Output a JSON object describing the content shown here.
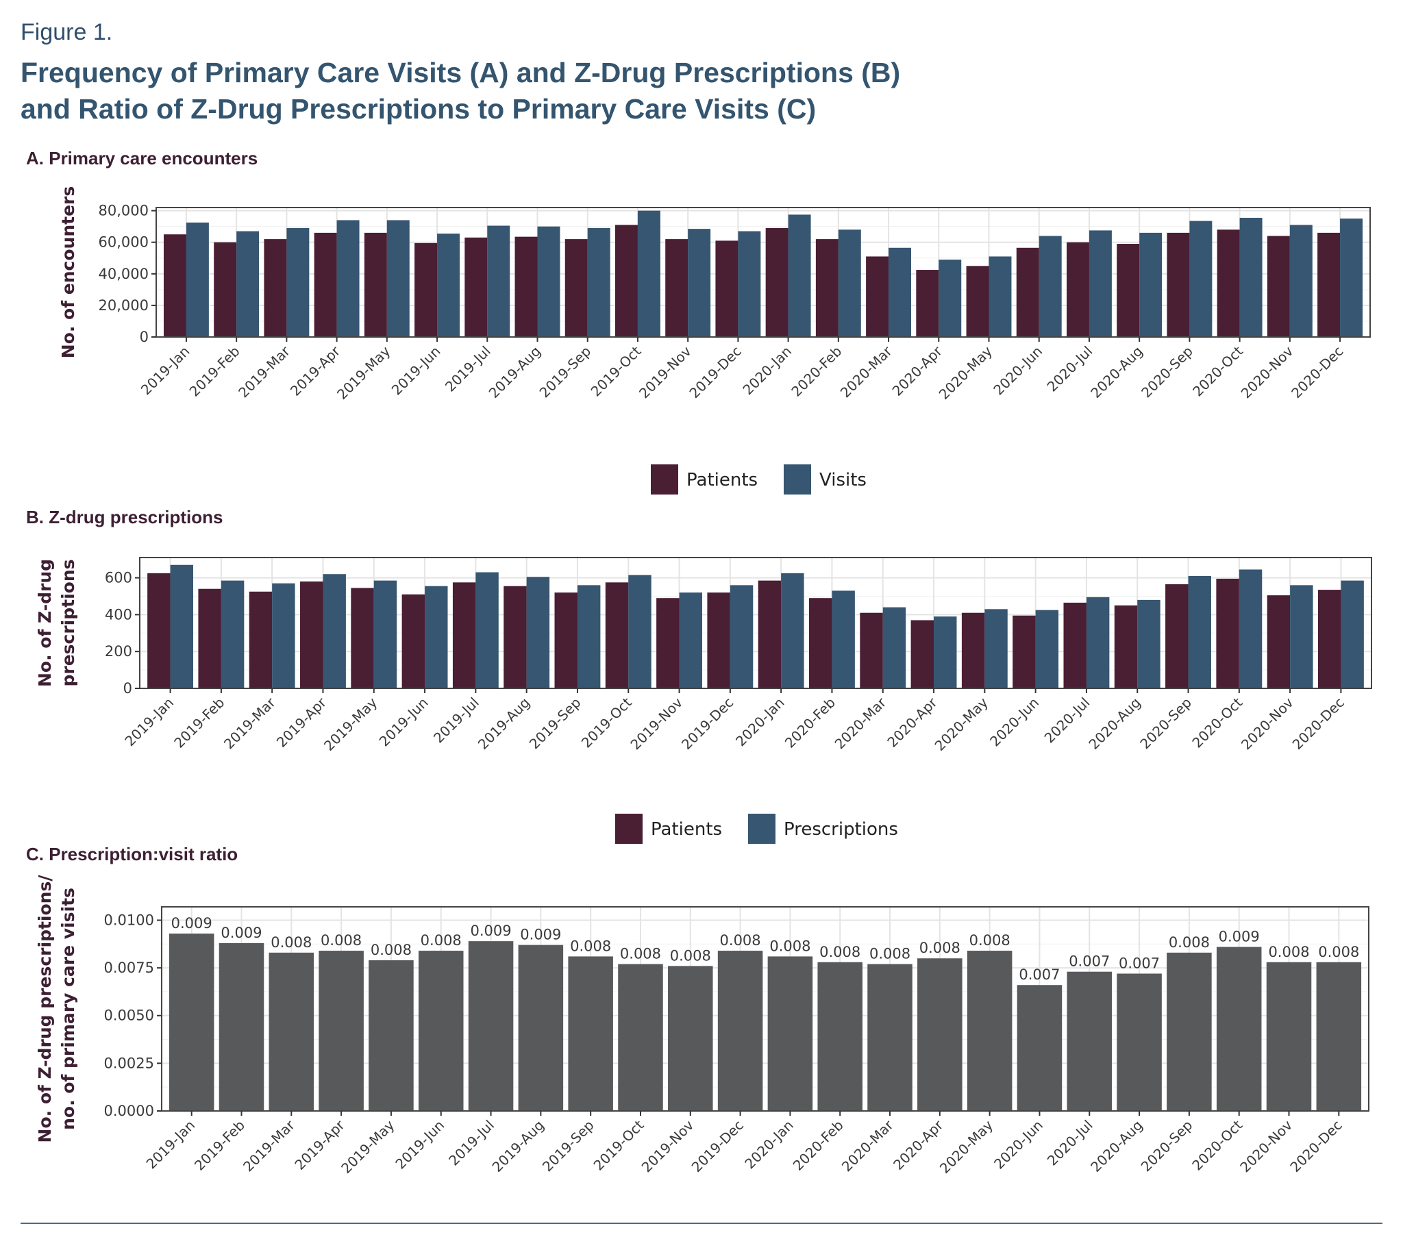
{
  "figure": {
    "label": "Figure 1.",
    "title_line1": "Frequency of Primary Care Visits (A) and Z-Drug Prescriptions (B)",
    "title_line2": "and Ratio of Z-Drug Prescriptions to Primary Care Visits (C)"
  },
  "colors": {
    "patients": "#4a1e33",
    "visits": "#365671",
    "ratio_bar": "#58595b",
    "axis_text": "#3a3a3a",
    "panel_title": "#3d1f33",
    "ylabel": "#3d1f33"
  },
  "chart_data": [
    {
      "type": "bar",
      "panel_title": "A. Primary care encounters",
      "ylabel": "No. of encounters",
      "xlabel": "",
      "ylim": [
        0,
        82000
      ],
      "yticks": [
        0,
        20000,
        40000,
        60000,
        80000
      ],
      "ytick_labels": [
        "0",
        "20,000",
        "40,000",
        "60,000",
        "80,000"
      ],
      "grid": true,
      "legend_position": "bottom",
      "categories": [
        "2019-Jan",
        "2019-Feb",
        "2019-Mar",
        "2019-Apr",
        "2019-May",
        "2019-Jun",
        "2019-Jul",
        "2019-Aug",
        "2019-Sep",
        "2019-Oct",
        "2019-Nov",
        "2019-Dec",
        "2020-Jan",
        "2020-Feb",
        "2020-Mar",
        "2020-Apr",
        "2020-May",
        "2020-Jun",
        "2020-Jul",
        "2020-Aug",
        "2020-Sep",
        "2020-Oct",
        "2020-Nov",
        "2020-Dec"
      ],
      "series": [
        {
          "name": "Patients",
          "values": [
            65000,
            60000,
            62000,
            66000,
            66000,
            59500,
            63000,
            63500,
            62000,
            71000,
            62000,
            61000,
            69000,
            62000,
            51000,
            42500,
            45000,
            56500,
            60000,
            59000,
            66000,
            68000,
            64000,
            66000
          ]
        },
        {
          "name": "Visits",
          "values": [
            72500,
            67000,
            69000,
            74000,
            74000,
            65500,
            70500,
            70000,
            69000,
            80000,
            68500,
            67000,
            77500,
            68000,
            56500,
            49000,
            51000,
            64000,
            67500,
            66000,
            73500,
            75500,
            71000,
            75000
          ]
        }
      ]
    },
    {
      "type": "bar",
      "panel_title": "B. Z-drug prescriptions",
      "ylabel_line1": "No. of Z-drug",
      "ylabel_line2": "prescriptions",
      "xlabel": "",
      "ylim": [
        0,
        710
      ],
      "yticks": [
        0,
        200,
        400,
        600
      ],
      "ytick_labels": [
        "0",
        "200",
        "400",
        "600"
      ],
      "grid": true,
      "legend_position": "bottom",
      "categories": [
        "2019-Jan",
        "2019-Feb",
        "2019-Mar",
        "2019-Apr",
        "2019-May",
        "2019-Jun",
        "2019-Jul",
        "2019-Aug",
        "2019-Sep",
        "2019-Oct",
        "2019-Nov",
        "2019-Dec",
        "2020-Jan",
        "2020-Feb",
        "2020-Mar",
        "2020-Apr",
        "2020-May",
        "2020-Jun",
        "2020-Jul",
        "2020-Aug",
        "2020-Sep",
        "2020-Oct",
        "2020-Nov",
        "2020-Dec"
      ],
      "series": [
        {
          "name": "Patients",
          "values": [
            625,
            540,
            525,
            580,
            545,
            510,
            575,
            555,
            520,
            575,
            490,
            520,
            585,
            490,
            410,
            370,
            410,
            395,
            465,
            450,
            565,
            595,
            505,
            535
          ]
        },
        {
          "name": "Prescriptions",
          "values": [
            670,
            585,
            570,
            620,
            585,
            555,
            630,
            605,
            560,
            615,
            520,
            560,
            625,
            530,
            440,
            390,
            430,
            425,
            495,
            480,
            610,
            645,
            560,
            585
          ]
        }
      ]
    },
    {
      "type": "bar",
      "panel_title": "C. Prescription:visit ratio",
      "ylabel_line1": "No. of Z-drug prescriptions/",
      "ylabel_line2": "no. of primary care visits",
      "xlabel": "",
      "ylim": [
        0,
        0.0107
      ],
      "yticks": [
        0,
        0.0025,
        0.005,
        0.0075,
        0.01
      ],
      "ytick_labels": [
        "0.0000",
        "0.0025",
        "0.0050",
        "0.0075",
        "0.0100"
      ],
      "grid": true,
      "categories": [
        "2019-Jan",
        "2019-Feb",
        "2019-Mar",
        "2019-Apr",
        "2019-May",
        "2019-Jun",
        "2019-Jul",
        "2019-Aug",
        "2019-Sep",
        "2019-Oct",
        "2019-Nov",
        "2019-Dec",
        "2020-Jan",
        "2020-Feb",
        "2020-Mar",
        "2020-Apr",
        "2020-May",
        "2020-Jun",
        "2020-Jul",
        "2020-Aug",
        "2020-Sep",
        "2020-Oct",
        "2020-Nov",
        "2020-Dec"
      ],
      "values": [
        0.0093,
        0.0088,
        0.0083,
        0.0084,
        0.0079,
        0.0084,
        0.0089,
        0.0087,
        0.0081,
        0.0077,
        0.0076,
        0.0084,
        0.0081,
        0.0078,
        0.0077,
        0.008,
        0.0084,
        0.0066,
        0.0073,
        0.0072,
        0.0083,
        0.0086,
        0.0078,
        0.0078
      ],
      "data_labels": [
        "0.009",
        "0.009",
        "0.008",
        "0.008",
        "0.008",
        "0.008",
        "0.009",
        "0.009",
        "0.008",
        "0.008",
        "0.008",
        "0.008",
        "0.008",
        "0.008",
        "0.008",
        "0.008",
        "0.008",
        "0.007",
        "0.007",
        "0.007",
        "0.008",
        "0.009",
        "0.008",
        "0.008"
      ]
    }
  ]
}
